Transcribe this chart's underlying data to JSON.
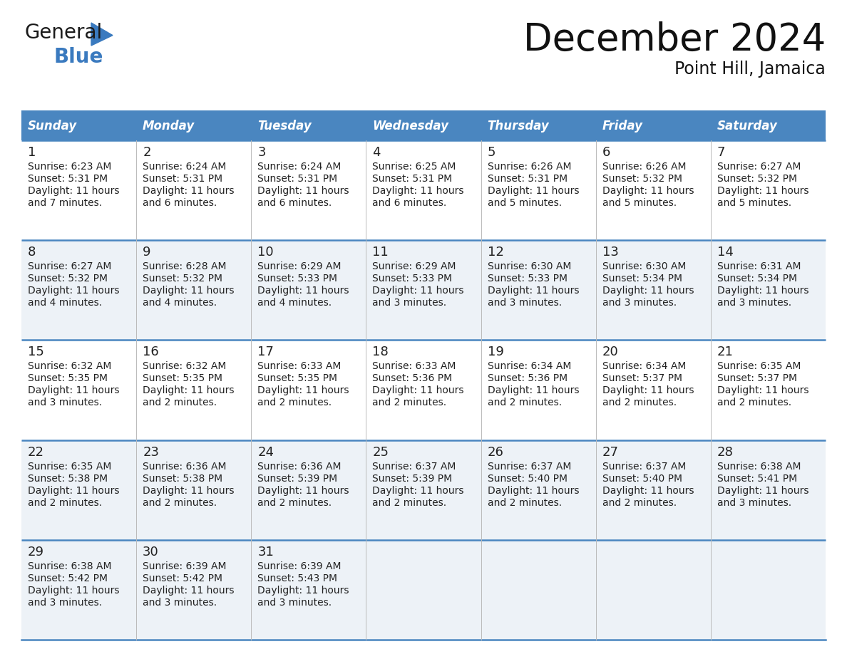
{
  "title": "December 2024",
  "subtitle": "Point Hill, Jamaica",
  "header_color": "#4a86c0",
  "header_text_color": "#ffffff",
  "row_bg_white": "#ffffff",
  "row_bg_gray": "#edf2f7",
  "border_color": "#4a86c0",
  "text_color": "#222222",
  "days_of_week": [
    "Sunday",
    "Monday",
    "Tuesday",
    "Wednesday",
    "Thursday",
    "Friday",
    "Saturday"
  ],
  "weeks": [
    [
      {
        "day": "1",
        "sunrise": "6:23 AM",
        "sunset": "5:31 PM",
        "daylight_l1": "Daylight: 11 hours",
        "daylight_l2": "and 7 minutes."
      },
      {
        "day": "2",
        "sunrise": "6:24 AM",
        "sunset": "5:31 PM",
        "daylight_l1": "Daylight: 11 hours",
        "daylight_l2": "and 6 minutes."
      },
      {
        "day": "3",
        "sunrise": "6:24 AM",
        "sunset": "5:31 PM",
        "daylight_l1": "Daylight: 11 hours",
        "daylight_l2": "and 6 minutes."
      },
      {
        "day": "4",
        "sunrise": "6:25 AM",
        "sunset": "5:31 PM",
        "daylight_l1": "Daylight: 11 hours",
        "daylight_l2": "and 6 minutes."
      },
      {
        "day": "5",
        "sunrise": "6:26 AM",
        "sunset": "5:31 PM",
        "daylight_l1": "Daylight: 11 hours",
        "daylight_l2": "and 5 minutes."
      },
      {
        "day": "6",
        "sunrise": "6:26 AM",
        "sunset": "5:32 PM",
        "daylight_l1": "Daylight: 11 hours",
        "daylight_l2": "and 5 minutes."
      },
      {
        "day": "7",
        "sunrise": "6:27 AM",
        "sunset": "5:32 PM",
        "daylight_l1": "Daylight: 11 hours",
        "daylight_l2": "and 5 minutes."
      }
    ],
    [
      {
        "day": "8",
        "sunrise": "6:27 AM",
        "sunset": "5:32 PM",
        "daylight_l1": "Daylight: 11 hours",
        "daylight_l2": "and 4 minutes."
      },
      {
        "day": "9",
        "sunrise": "6:28 AM",
        "sunset": "5:32 PM",
        "daylight_l1": "Daylight: 11 hours",
        "daylight_l2": "and 4 minutes."
      },
      {
        "day": "10",
        "sunrise": "6:29 AM",
        "sunset": "5:33 PM",
        "daylight_l1": "Daylight: 11 hours",
        "daylight_l2": "and 4 minutes."
      },
      {
        "day": "11",
        "sunrise": "6:29 AM",
        "sunset": "5:33 PM",
        "daylight_l1": "Daylight: 11 hours",
        "daylight_l2": "and 3 minutes."
      },
      {
        "day": "12",
        "sunrise": "6:30 AM",
        "sunset": "5:33 PM",
        "daylight_l1": "Daylight: 11 hours",
        "daylight_l2": "and 3 minutes."
      },
      {
        "day": "13",
        "sunrise": "6:30 AM",
        "sunset": "5:34 PM",
        "daylight_l1": "Daylight: 11 hours",
        "daylight_l2": "and 3 minutes."
      },
      {
        "day": "14",
        "sunrise": "6:31 AM",
        "sunset": "5:34 PM",
        "daylight_l1": "Daylight: 11 hours",
        "daylight_l2": "and 3 minutes."
      }
    ],
    [
      {
        "day": "15",
        "sunrise": "6:32 AM",
        "sunset": "5:35 PM",
        "daylight_l1": "Daylight: 11 hours",
        "daylight_l2": "and 3 minutes."
      },
      {
        "day": "16",
        "sunrise": "6:32 AM",
        "sunset": "5:35 PM",
        "daylight_l1": "Daylight: 11 hours",
        "daylight_l2": "and 2 minutes."
      },
      {
        "day": "17",
        "sunrise": "6:33 AM",
        "sunset": "5:35 PM",
        "daylight_l1": "Daylight: 11 hours",
        "daylight_l2": "and 2 minutes."
      },
      {
        "day": "18",
        "sunrise": "6:33 AM",
        "sunset": "5:36 PM",
        "daylight_l1": "Daylight: 11 hours",
        "daylight_l2": "and 2 minutes."
      },
      {
        "day": "19",
        "sunrise": "6:34 AM",
        "sunset": "5:36 PM",
        "daylight_l1": "Daylight: 11 hours",
        "daylight_l2": "and 2 minutes."
      },
      {
        "day": "20",
        "sunrise": "6:34 AM",
        "sunset": "5:37 PM",
        "daylight_l1": "Daylight: 11 hours",
        "daylight_l2": "and 2 minutes."
      },
      {
        "day": "21",
        "sunrise": "6:35 AM",
        "sunset": "5:37 PM",
        "daylight_l1": "Daylight: 11 hours",
        "daylight_l2": "and 2 minutes."
      }
    ],
    [
      {
        "day": "22",
        "sunrise": "6:35 AM",
        "sunset": "5:38 PM",
        "daylight_l1": "Daylight: 11 hours",
        "daylight_l2": "and 2 minutes."
      },
      {
        "day": "23",
        "sunrise": "6:36 AM",
        "sunset": "5:38 PM",
        "daylight_l1": "Daylight: 11 hours",
        "daylight_l2": "and 2 minutes."
      },
      {
        "day": "24",
        "sunrise": "6:36 AM",
        "sunset": "5:39 PM",
        "daylight_l1": "Daylight: 11 hours",
        "daylight_l2": "and 2 minutes."
      },
      {
        "day": "25",
        "sunrise": "6:37 AM",
        "sunset": "5:39 PM",
        "daylight_l1": "Daylight: 11 hours",
        "daylight_l2": "and 2 minutes."
      },
      {
        "day": "26",
        "sunrise": "6:37 AM",
        "sunset": "5:40 PM",
        "daylight_l1": "Daylight: 11 hours",
        "daylight_l2": "and 2 minutes."
      },
      {
        "day": "27",
        "sunrise": "6:37 AM",
        "sunset": "5:40 PM",
        "daylight_l1": "Daylight: 11 hours",
        "daylight_l2": "and 2 minutes."
      },
      {
        "day": "28",
        "sunrise": "6:38 AM",
        "sunset": "5:41 PM",
        "daylight_l1": "Daylight: 11 hours",
        "daylight_l2": "and 3 minutes."
      }
    ],
    [
      {
        "day": "29",
        "sunrise": "6:38 AM",
        "sunset": "5:42 PM",
        "daylight_l1": "Daylight: 11 hours",
        "daylight_l2": "and 3 minutes."
      },
      {
        "day": "30",
        "sunrise": "6:39 AM",
        "sunset": "5:42 PM",
        "daylight_l1": "Daylight: 11 hours",
        "daylight_l2": "and 3 minutes."
      },
      {
        "day": "31",
        "sunrise": "6:39 AM",
        "sunset": "5:43 PM",
        "daylight_l1": "Daylight: 11 hours",
        "daylight_l2": "and 3 minutes."
      },
      null,
      null,
      null,
      null
    ]
  ]
}
